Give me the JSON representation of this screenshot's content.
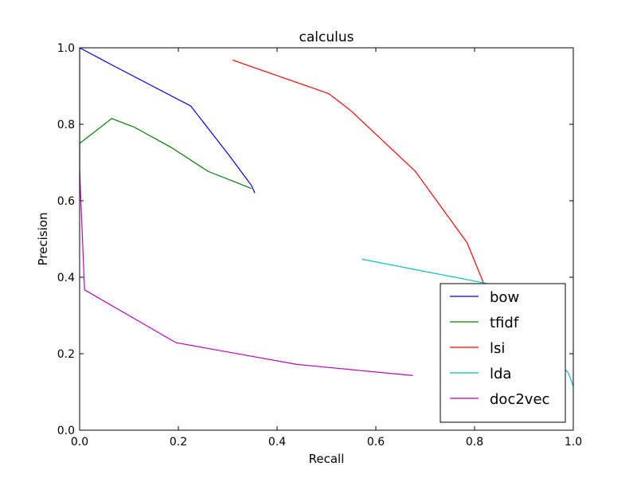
{
  "chart_data": {
    "type": "line",
    "title": "calculus",
    "xlabel": "Recall",
    "ylabel": "Precision",
    "xlim": [
      0,
      1
    ],
    "ylim": [
      0,
      1
    ],
    "xticks": [
      "0.0",
      "0.2",
      "0.4",
      "0.6",
      "0.8",
      "1.0"
    ],
    "yticks": [
      "0.0",
      "0.2",
      "0.4",
      "0.6",
      "0.8",
      "1.0"
    ],
    "grid": false,
    "legend_position": "lower-right",
    "series": [
      {
        "name": "bow",
        "color": "#0000ff",
        "points": [
          [
            0.0,
            0.617
          ],
          [
            0.0,
            1.0
          ],
          [
            0.07,
            0.952
          ],
          [
            0.225,
            0.848
          ],
          [
            0.305,
            0.715
          ],
          [
            0.348,
            0.64
          ],
          [
            0.355,
            0.62
          ]
        ]
      },
      {
        "name": "tfidf",
        "color": "#008000",
        "points": [
          [
            0.0,
            0.665
          ],
          [
            0.0,
            0.75
          ],
          [
            0.065,
            0.815
          ],
          [
            0.11,
            0.793
          ],
          [
            0.185,
            0.74
          ],
          [
            0.26,
            0.677
          ],
          [
            0.348,
            0.632
          ]
        ]
      },
      {
        "name": "lsi",
        "color": "#ff0000",
        "points": [
          [
            0.31,
            0.968
          ],
          [
            0.505,
            0.88
          ],
          [
            0.55,
            0.835
          ],
          [
            0.68,
            0.677
          ],
          [
            0.785,
            0.49
          ],
          [
            0.845,
            0.3
          ],
          [
            0.9,
            0.25
          ]
        ]
      },
      {
        "name": "lda",
        "color": "#00bfbf",
        "points": [
          [
            0.572,
            0.447
          ],
          [
            0.908,
            0.363
          ],
          [
            0.92,
            0.33
          ],
          [
            0.95,
            0.26
          ],
          [
            0.975,
            0.17
          ],
          [
            0.99,
            0.15
          ],
          [
            1.0,
            0.115
          ]
        ]
      },
      {
        "name": "doc2vec",
        "color": "#bf00bf",
        "points": [
          [
            0.0,
            0.68
          ],
          [
            0.01,
            0.367
          ],
          [
            0.195,
            0.229
          ],
          [
            0.44,
            0.172
          ],
          [
            0.675,
            0.143
          ]
        ]
      }
    ]
  }
}
